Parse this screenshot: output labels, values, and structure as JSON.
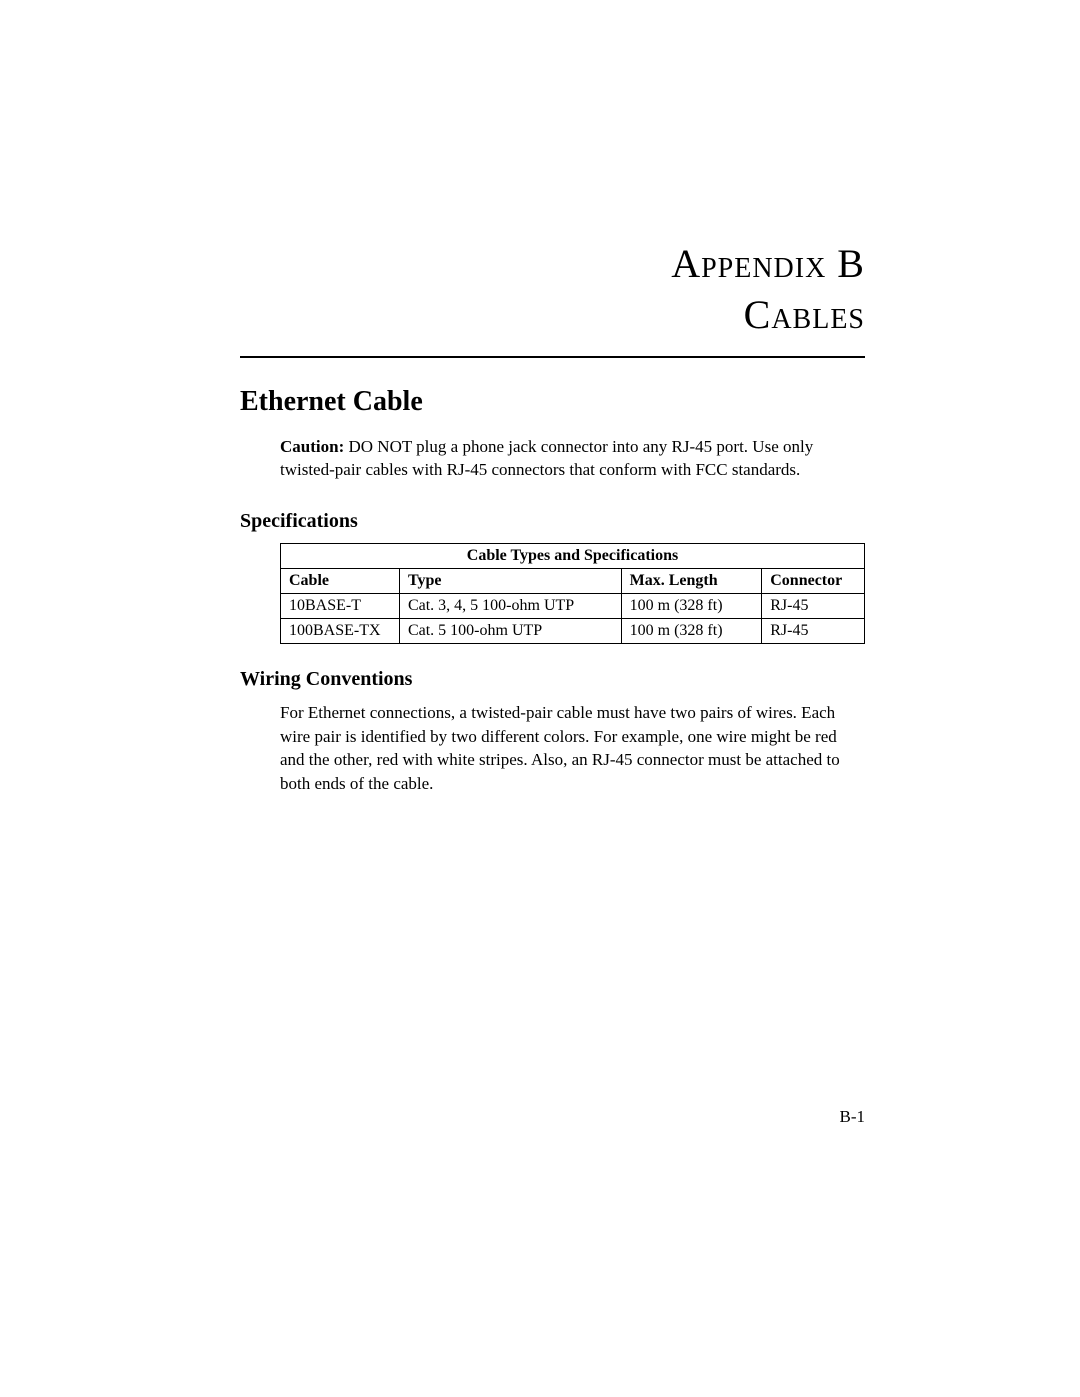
{
  "title": {
    "line1": "Appendix B",
    "line2": "Cables"
  },
  "section1": {
    "heading": "Ethernet Cable",
    "caution_label": "Caution:",
    "caution_text": "DO NOT plug a phone jack connector into any RJ-45 port. Use only twisted-pair cables with RJ-45 connectors that conform with FCC standards."
  },
  "specs": {
    "heading": "Specifications",
    "table": {
      "title": "Cable Types and Specifications",
      "columns": [
        "Cable",
        "Type",
        "Max. Length",
        "Connector"
      ],
      "rows": [
        [
          "10BASE-T",
          "Cat. 3, 4, 5 100-ohm UTP",
          "100 m (328 ft)",
          "RJ-45"
        ],
        [
          "100BASE-TX",
          "Cat. 5 100-ohm UTP",
          "100 m (328 ft)",
          "RJ-45"
        ]
      ],
      "col_widths": [
        "110px",
        "205px",
        "130px",
        "95px"
      ],
      "border_color": "#000000",
      "font_size": 16
    }
  },
  "wiring": {
    "heading": "Wiring Conventions",
    "body": "For Ethernet connections, a twisted-pair cable must have two pairs of wires. Each wire pair is identified by two different colors. For example, one wire might be red and the other, red with white stripes. Also, an RJ-45 connector must be attached to both ends of the cable."
  },
  "page_number": "B-1"
}
